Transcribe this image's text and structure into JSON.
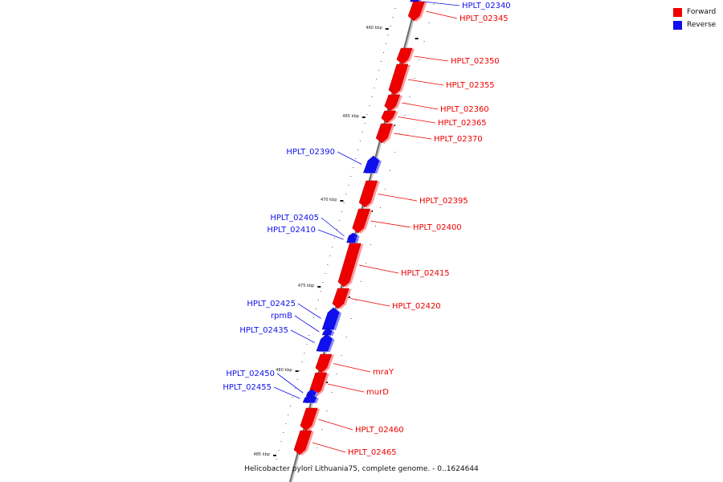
{
  "legend": {
    "forward": {
      "label": "Forward",
      "color": "#ee0000"
    },
    "reverse": {
      "label": "Reverse",
      "color": "#1010ee"
    }
  },
  "caption": "Helicobacter pylori Lithuania75, complete genome. - 0..1624644",
  "ticks": [
    "460 kbp",
    "465 kbp",
    "470 kbp",
    "475 kbp",
    "480 kbp",
    "485 kbp"
  ],
  "genes": [
    {
      "name": "HPLT_02340",
      "strand": "reverse"
    },
    {
      "name": "HPLT_02345",
      "strand": "forward"
    },
    {
      "name": "HPLT_02350",
      "strand": "forward"
    },
    {
      "name": "HPLT_02355",
      "strand": "forward"
    },
    {
      "name": "HPLT_02360",
      "strand": "forward"
    },
    {
      "name": "HPLT_02365",
      "strand": "forward"
    },
    {
      "name": "HPLT_02370",
      "strand": "forward"
    },
    {
      "name": "HPLT_02390",
      "strand": "reverse"
    },
    {
      "name": "HPLT_02395",
      "strand": "forward"
    },
    {
      "name": "HPLT_02400",
      "strand": "forward"
    },
    {
      "name": "HPLT_02405",
      "strand": "reverse"
    },
    {
      "name": "HPLT_02410",
      "strand": "reverse"
    },
    {
      "name": "HPLT_02415",
      "strand": "forward"
    },
    {
      "name": "HPLT_02420",
      "strand": "forward"
    },
    {
      "name": "HPLT_02425",
      "strand": "reverse"
    },
    {
      "name": "rpmB",
      "strand": "reverse"
    },
    {
      "name": "HPLT_02435",
      "strand": "reverse"
    },
    {
      "name": "mraY",
      "strand": "forward"
    },
    {
      "name": "murD",
      "strand": "forward"
    },
    {
      "name": "HPLT_02450",
      "strand": "reverse"
    },
    {
      "name": "HPLT_02455",
      "strand": "reverse"
    },
    {
      "name": "HPLT_02460",
      "strand": "forward"
    },
    {
      "name": "HPLT_02465",
      "strand": "forward"
    }
  ]
}
